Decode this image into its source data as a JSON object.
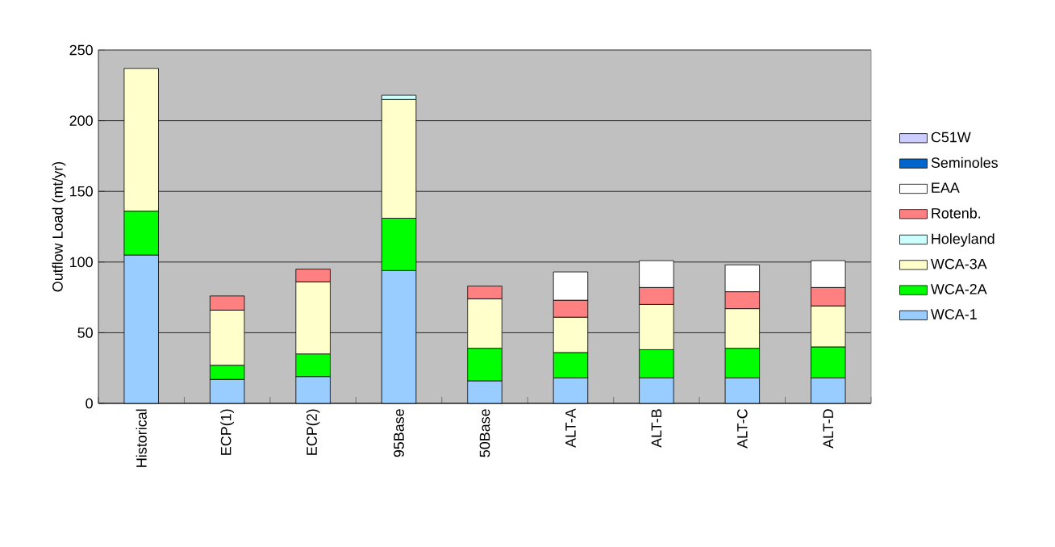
{
  "chart_data": {
    "type": "bar",
    "stacked": true,
    "ylabel": "Outflow Load (mt/yr)",
    "categories": [
      "Historical",
      "ECP(1)",
      "ECP(2)",
      "95Base",
      "50Base",
      "ALT-A",
      "ALT-B",
      "ALT-C",
      "ALT-D"
    ],
    "series": [
      {
        "name": "WCA-1",
        "color": "#99ccff",
        "values": [
          105,
          17,
          19,
          94,
          16,
          18,
          18,
          18,
          18
        ]
      },
      {
        "name": "WCA-2A",
        "color": "#00ff00",
        "values": [
          31,
          10,
          16,
          37,
          23,
          18,
          20,
          21,
          22
        ]
      },
      {
        "name": "WCA-3A",
        "color": "#ffffcc",
        "values": [
          101,
          39,
          51,
          84,
          35,
          25,
          32,
          28,
          29
        ]
      },
      {
        "name": "Holeyland",
        "color": "#ccffff",
        "values": [
          null,
          null,
          null,
          3,
          null,
          null,
          null,
          null,
          null
        ]
      },
      {
        "name": "Rotenb.",
        "color": "#ff8080",
        "values": [
          null,
          10,
          9,
          null,
          9,
          12,
          12,
          12,
          13
        ]
      },
      {
        "name": "EAA",
        "color": "#ffffff",
        "values": [
          null,
          null,
          null,
          null,
          null,
          20,
          19,
          19,
          19
        ]
      },
      {
        "name": "Seminoles",
        "color": "#0066cc",
        "values": [
          null,
          null,
          null,
          null,
          null,
          null,
          null,
          null,
          null
        ]
      },
      {
        "name": "C51W",
        "color": "#ccccff",
        "values": [
          null,
          null,
          null,
          null,
          null,
          null,
          null,
          null,
          null
        ]
      }
    ],
    "ylim": [
      0,
      250
    ],
    "yticks": [
      0,
      50,
      100,
      150,
      200,
      250
    ],
    "grid": "y",
    "legend": "right"
  }
}
